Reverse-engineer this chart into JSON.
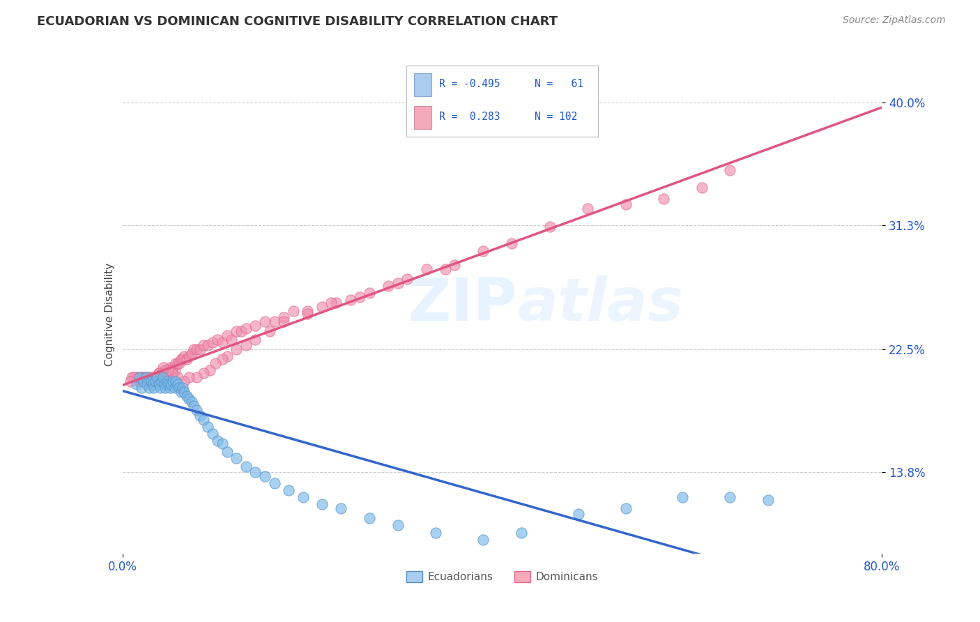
{
  "title": "ECUADORIAN VS DOMINICAN COGNITIVE DISABILITY CORRELATION CHART",
  "source": "Source: ZipAtlas.com",
  "ylabel": "Cognitive Disability",
  "xlim": [
    0.0,
    0.8
  ],
  "ylim": [
    0.08,
    0.42
  ],
  "yticks": [
    0.138,
    0.225,
    0.313,
    0.4
  ],
  "ytick_labels": [
    "13.8%",
    "22.5%",
    "31.3%",
    "40.0%"
  ],
  "xticks": [
    0.0,
    0.8
  ],
  "xtick_labels": [
    "0.0%",
    "80.0%"
  ],
  "legend_text_color": "#2255cc",
  "ecu_color": "#7ab8e8",
  "dom_color": "#f090b0",
  "ecu_edge": "#5090c8",
  "dom_edge": "#e06888",
  "trend_ecu_color": "#3366cc",
  "trend_dom_color": "#e05580",
  "background_color": "#ffffff",
  "grid_color": "#cccccc",
  "ecu_legend_color": "#aaccee",
  "dom_legend_color": "#f4aabb",
  "ecu_R": -0.495,
  "ecu_N": 61,
  "dom_R": 0.283,
  "dom_N": 102,
  "ecu_scatter_x": [
    0.015,
    0.018,
    0.02,
    0.022,
    0.025,
    0.026,
    0.028,
    0.03,
    0.032,
    0.033,
    0.035,
    0.036,
    0.038,
    0.04,
    0.041,
    0.043,
    0.044,
    0.045,
    0.047,
    0.048,
    0.05,
    0.051,
    0.053,
    0.055,
    0.056,
    0.058,
    0.06,
    0.062,
    0.063,
    0.065,
    0.068,
    0.07,
    0.073,
    0.075,
    0.078,
    0.082,
    0.085,
    0.09,
    0.095,
    0.1,
    0.105,
    0.11,
    0.12,
    0.13,
    0.14,
    0.15,
    0.16,
    0.175,
    0.19,
    0.21,
    0.23,
    0.26,
    0.29,
    0.33,
    0.38,
    0.42,
    0.48,
    0.53,
    0.59,
    0.64,
    0.68
  ],
  "ecu_scatter_y": [
    0.2,
    0.205,
    0.198,
    0.202,
    0.205,
    0.2,
    0.198,
    0.202,
    0.2,
    0.198,
    0.202,
    0.205,
    0.2,
    0.198,
    0.202,
    0.205,
    0.2,
    0.198,
    0.202,
    0.2,
    0.198,
    0.2,
    0.202,
    0.198,
    0.202,
    0.2,
    0.198,
    0.195,
    0.198,
    0.195,
    0.192,
    0.19,
    0.188,
    0.185,
    0.182,
    0.178,
    0.175,
    0.17,
    0.165,
    0.16,
    0.158,
    0.152,
    0.148,
    0.142,
    0.138,
    0.135,
    0.13,
    0.125,
    0.12,
    0.115,
    0.112,
    0.105,
    0.1,
    0.095,
    0.09,
    0.095,
    0.108,
    0.112,
    0.12,
    0.12,
    0.118
  ],
  "dom_scatter_x": [
    0.01,
    0.015,
    0.018,
    0.02,
    0.022,
    0.025,
    0.026,
    0.028,
    0.03,
    0.032,
    0.033,
    0.035,
    0.036,
    0.038,
    0.04,
    0.041,
    0.043,
    0.044,
    0.045,
    0.047,
    0.048,
    0.05,
    0.051,
    0.053,
    0.055,
    0.056,
    0.058,
    0.06,
    0.062,
    0.063,
    0.065,
    0.068,
    0.07,
    0.073,
    0.075,
    0.078,
    0.082,
    0.085,
    0.09,
    0.095,
    0.1,
    0.105,
    0.11,
    0.115,
    0.12,
    0.125,
    0.13,
    0.14,
    0.15,
    0.16,
    0.17,
    0.18,
    0.195,
    0.21,
    0.225,
    0.24,
    0.26,
    0.28,
    0.3,
    0.32,
    0.35,
    0.38,
    0.41,
    0.45,
    0.49,
    0.53,
    0.57,
    0.61,
    0.64,
    0.34,
    0.29,
    0.25,
    0.22,
    0.195,
    0.17,
    0.155,
    0.14,
    0.13,
    0.12,
    0.11,
    0.105,
    0.098,
    0.092,
    0.085,
    0.078,
    0.07,
    0.065,
    0.058,
    0.052,
    0.048,
    0.043,
    0.038,
    0.035,
    0.03,
    0.028,
    0.025,
    0.022,
    0.02,
    0.018,
    0.015,
    0.012,
    0.008
  ],
  "dom_scatter_y": [
    0.205,
    0.205,
    0.202,
    0.205,
    0.205,
    0.202,
    0.205,
    0.205,
    0.202,
    0.205,
    0.205,
    0.202,
    0.205,
    0.208,
    0.205,
    0.208,
    0.208,
    0.21,
    0.21,
    0.208,
    0.21,
    0.212,
    0.21,
    0.212,
    0.21,
    0.215,
    0.215,
    0.215,
    0.218,
    0.218,
    0.22,
    0.218,
    0.22,
    0.222,
    0.225,
    0.225,
    0.225,
    0.228,
    0.228,
    0.23,
    0.232,
    0.23,
    0.235,
    0.232,
    0.238,
    0.238,
    0.24,
    0.242,
    0.245,
    0.245,
    0.248,
    0.252,
    0.252,
    0.255,
    0.258,
    0.26,
    0.265,
    0.27,
    0.275,
    0.282,
    0.285,
    0.295,
    0.3,
    0.312,
    0.325,
    0.328,
    0.332,
    0.34,
    0.352,
    0.282,
    0.272,
    0.262,
    0.258,
    0.25,
    0.245,
    0.238,
    0.232,
    0.228,
    0.225,
    0.22,
    0.218,
    0.215,
    0.21,
    0.208,
    0.205,
    0.205,
    0.202,
    0.205,
    0.208,
    0.21,
    0.212,
    0.208,
    0.205,
    0.205,
    0.202,
    0.202,
    0.205,
    0.205,
    0.202,
    0.205,
    0.205,
    0.202
  ]
}
